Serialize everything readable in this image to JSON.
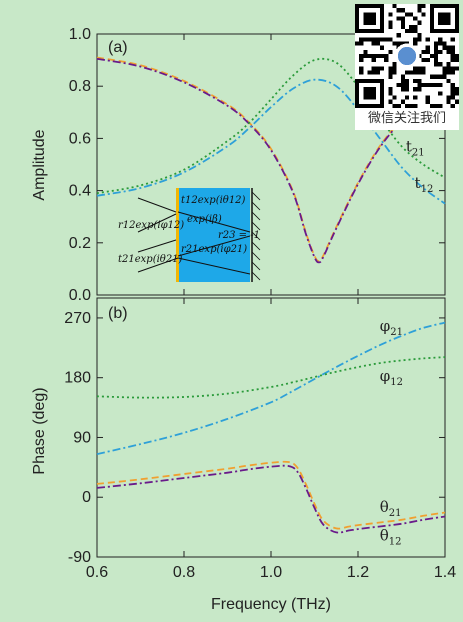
{
  "chart_data": [
    {
      "type": "line",
      "panel_label": "(a)",
      "ylabel": "Amplitude",
      "xlim": [
        0.6,
        1.4
      ],
      "ylim": [
        0.0,
        1.0
      ],
      "yticks": [
        "0.0",
        "0.2",
        "0.4",
        "0.6",
        "0.8",
        "1.0"
      ],
      "series": [
        {
          "name": "t21",
          "color": "#f0a030",
          "style": "dashed",
          "x": [
            0.6,
            0.7,
            0.8,
            0.9,
            0.95,
            1.0,
            1.05,
            1.08,
            1.1,
            1.11,
            1.12,
            1.15,
            1.2,
            1.25,
            1.3,
            1.35,
            1.4
          ],
          "y": [
            0.91,
            0.88,
            0.82,
            0.73,
            0.66,
            0.56,
            0.4,
            0.24,
            0.15,
            0.13,
            0.15,
            0.26,
            0.43,
            0.57,
            0.67,
            0.73,
            0.77
          ]
        },
        {
          "name": "t12",
          "color": "#6a1a8a",
          "style": "dashdot",
          "x": [
            0.6,
            0.7,
            0.8,
            0.9,
            0.95,
            1.0,
            1.05,
            1.08,
            1.1,
            1.11,
            1.12,
            1.15,
            1.2,
            1.25,
            1.3,
            1.35,
            1.4
          ],
          "y": [
            0.905,
            0.875,
            0.815,
            0.725,
            0.655,
            0.555,
            0.395,
            0.235,
            0.145,
            0.125,
            0.145,
            0.255,
            0.425,
            0.565,
            0.665,
            0.725,
            0.765
          ]
        },
        {
          "color": "#2a9a3a",
          "style": "dotted",
          "x": [
            0.6,
            0.7,
            0.8,
            0.9,
            0.95,
            1.0,
            1.05,
            1.1,
            1.15,
            1.2,
            1.25,
            1.3,
            1.35,
            1.4
          ],
          "y": [
            0.39,
            0.42,
            0.48,
            0.59,
            0.66,
            0.75,
            0.84,
            0.9,
            0.89,
            0.8,
            0.68,
            0.57,
            0.5,
            0.45
          ]
        },
        {
          "color": "#2ea0d8",
          "style": "dashdot",
          "x": [
            0.6,
            0.7,
            0.8,
            0.9,
            0.95,
            1.0,
            1.05,
            1.1,
            1.15,
            1.2,
            1.25,
            1.3,
            1.35,
            1.4
          ],
          "y": [
            0.38,
            0.41,
            0.47,
            0.57,
            0.64,
            0.72,
            0.79,
            0.825,
            0.8,
            0.71,
            0.6,
            0.49,
            0.41,
            0.35
          ]
        }
      ],
      "annotations": [
        {
          "text": "t",
          "sub": "21",
          "x": 1.31,
          "y": 0.55
        },
        {
          "text": "t",
          "sub": "12",
          "x": 1.33,
          "y": 0.41
        }
      ],
      "inset_labels": [
        {
          "main": "t12exp(iθ12)"
        },
        {
          "main": "exp(iβ)"
        },
        {
          "main": "r23 = -1"
        },
        {
          "main": "r12exp(iφ12)"
        },
        {
          "main": "r21exp(iφ21)"
        },
        {
          "main": "t21exp(iθ21)"
        }
      ]
    },
    {
      "type": "line",
      "panel_label": "(b)",
      "xlabel": "Frequency (THz)",
      "ylabel": "Phase (deg)",
      "xlim": [
        0.6,
        1.4
      ],
      "ylim": [
        -90,
        300
      ],
      "xticks": [
        "0.6",
        "0.8",
        "1.0",
        "1.2",
        "1.4"
      ],
      "yticks": [
        "-90",
        "0",
        "90",
        "180",
        "270"
      ],
      "series": [
        {
          "name": "φ21",
          "color": "#2ea0d8",
          "style": "dashdot",
          "x": [
            0.6,
            0.7,
            0.8,
            0.9,
            1.0,
            1.05,
            1.1,
            1.15,
            1.2,
            1.25,
            1.3,
            1.35,
            1.4
          ],
          "y": [
            65,
            80,
            97,
            118,
            143,
            160,
            178,
            196,
            213,
            229,
            243,
            255,
            263
          ]
        },
        {
          "name": "φ12",
          "color": "#2a9a3a",
          "style": "dotted",
          "x": [
            0.6,
            0.7,
            0.8,
            0.9,
            1.0,
            1.05,
            1.1,
            1.15,
            1.2,
            1.25,
            1.3,
            1.35,
            1.4
          ],
          "y": [
            152,
            150,
            151,
            156,
            166,
            173,
            181,
            189,
            196,
            202,
            206,
            209,
            211
          ]
        },
        {
          "name": "θ21",
          "color": "#f0a030",
          "style": "dashed",
          "x": [
            0.6,
            0.7,
            0.8,
            0.9,
            0.95,
            1.0,
            1.04,
            1.06,
            1.08,
            1.1,
            1.12,
            1.15,
            1.18,
            1.2,
            1.25,
            1.3,
            1.35,
            1.4
          ],
          "y": [
            20,
            27,
            35,
            43,
            48,
            52,
            53,
            45,
            20,
            -10,
            -35,
            -47,
            -44,
            -42,
            -38,
            -34,
            -28,
            -23
          ]
        },
        {
          "name": "θ12",
          "color": "#6a1a8a",
          "style": "dashdot",
          "x": [
            0.6,
            0.7,
            0.8,
            0.9,
            0.95,
            1.0,
            1.04,
            1.06,
            1.08,
            1.1,
            1.12,
            1.15,
            1.18,
            1.2,
            1.25,
            1.3,
            1.35,
            1.4
          ],
          "y": [
            14,
            21,
            29,
            37,
            42,
            46,
            47,
            39,
            14,
            -16,
            -41,
            -53,
            -50,
            -48,
            -44,
            -40,
            -34,
            -29
          ]
        }
      ],
      "annotations": [
        {
          "text": "φ",
          "sub": "21",
          "x": 1.25,
          "y": 250
        },
        {
          "text": "φ",
          "sub": "12",
          "x": 1.25,
          "y": 175
        },
        {
          "text": "θ",
          "sub": "21",
          "x": 1.25,
          "y": -22
        },
        {
          "text": "θ",
          "sub": "12",
          "x": 1.25,
          "y": -65
        }
      ]
    }
  ],
  "qr_caption": "微信关注我们"
}
